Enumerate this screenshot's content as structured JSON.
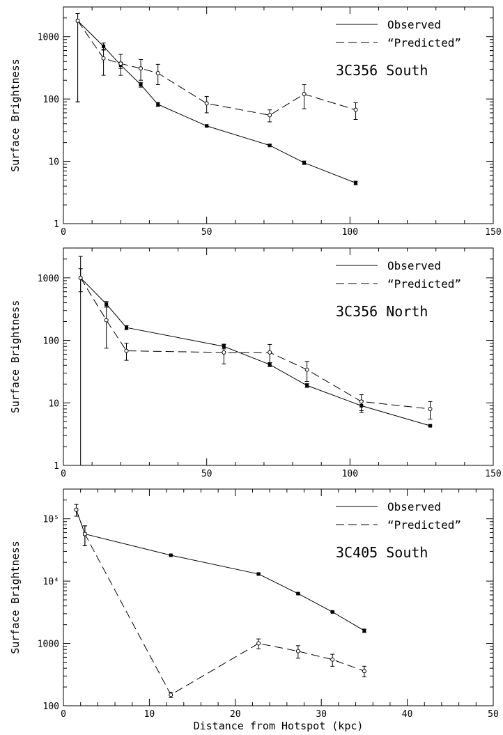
{
  "chart_data": [
    {
      "type": "line",
      "panel_label": "3C356 South",
      "ylabel": "Surface Brightness",
      "xlabel": "",
      "xlim": [
        0,
        150
      ],
      "ylim": [
        1,
        3000
      ],
      "y_scale": "log",
      "x_ticks": [
        "0",
        "50",
        "100",
        "150"
      ],
      "y_ticks": [
        "1",
        "10",
        "100",
        "1000"
      ],
      "legend_position": "top-right",
      "series": [
        {
          "name": "Observed",
          "style": "solid",
          "x": [
            5,
            14,
            20,
            27,
            33,
            50,
            72,
            84,
            102
          ],
          "y": [
            1800,
            700,
            350,
            170,
            82,
            37,
            18,
            9.5,
            4.5
          ],
          "err_lo": [
            1710,
            90,
            40,
            15,
            6,
            1.5,
            0.7,
            0.6,
            0.3
          ],
          "err_hi": [
            550,
            90,
            40,
            15,
            6,
            1.5,
            0.7,
            0.6,
            0.3
          ]
        },
        {
          "name": "“Predicted”",
          "style": "dashed",
          "x": [
            5,
            14,
            20,
            27,
            33,
            50,
            72,
            84,
            102
          ],
          "y": [
            1800,
            450,
            370,
            310,
            260,
            85,
            55,
            120,
            67
          ],
          "err_lo": [
            1710,
            210,
            130,
            110,
            90,
            25,
            12,
            50,
            20
          ],
          "err_hi": [
            550,
            180,
            150,
            120,
            100,
            25,
            12,
            50,
            20
          ]
        }
      ]
    },
    {
      "type": "line",
      "panel_label": "3C356 North",
      "ylabel": "Surface Brightness",
      "xlabel": "",
      "xlim": [
        0,
        150
      ],
      "ylim": [
        1,
        3000
      ],
      "y_scale": "log",
      "x_ticks": [
        "0",
        "50",
        "100",
        "150"
      ],
      "y_ticks": [
        "1",
        "10",
        "100",
        "1000"
      ],
      "legend_position": "top-right",
      "series": [
        {
          "name": "Observed",
          "style": "solid",
          "x": [
            6,
            15,
            22,
            56,
            72,
            85,
            104,
            128
          ],
          "y": [
            1000,
            380,
            160,
            80,
            41,
            19,
            9,
            4.3
          ],
          "err_lo": [
            999,
            40,
            12,
            7,
            3,
            1.3,
            2,
            0.15
          ],
          "err_hi": [
            1200,
            40,
            12,
            7,
            3,
            1.3,
            2,
            0.15
          ]
        },
        {
          "name": "“Predicted”",
          "style": "dashed",
          "x": [
            6,
            15,
            22,
            56,
            72,
            85,
            104,
            128
          ],
          "y": [
            1000,
            210,
            68,
            64,
            64,
            34,
            10.5,
            8
          ],
          "err_lo": [
            400,
            135,
            20,
            22,
            22,
            12,
            3,
            2.5
          ],
          "err_hi": [
            400,
            135,
            22,
            22,
            22,
            12,
            3,
            2.5
          ]
        }
      ]
    },
    {
      "type": "line",
      "panel_label": "3C405 South",
      "ylabel": "Surface Brightness",
      "xlabel": "Distance from Hotspot (kpc)",
      "xlim": [
        0,
        50
      ],
      "ylim": [
        100,
        300000
      ],
      "y_scale": "log",
      "x_ticks": [
        "0",
        "10",
        "20",
        "30",
        "40",
        "50"
      ],
      "y_ticks": [
        "100",
        "1000",
        "10⁴",
        "10⁵"
      ],
      "legend_position": "top-right",
      "series": [
        {
          "name": "Observed",
          "style": "solid",
          "x": [
            1.5,
            2.5,
            12.5,
            22.7,
            27.3,
            31.3,
            35
          ],
          "y": [
            140000,
            57000,
            26000,
            13000,
            6300,
            3200,
            1600
          ],
          "err_lo": [
            30000,
            20000,
            600,
            300,
            150,
            80,
            100
          ],
          "err_hi": [
            30000,
            20000,
            600,
            300,
            150,
            80,
            100
          ]
        },
        {
          "name": "“Predicted”",
          "style": "dashed",
          "x": [
            1.5,
            2.5,
            12.5,
            22.7,
            27.3,
            31.3,
            35
          ],
          "y": [
            140000,
            57000,
            150,
            1000,
            750,
            550,
            360
          ],
          "err_lo": [
            30000,
            20000,
            15,
            180,
            170,
            120,
            70
          ],
          "err_hi": [
            30000,
            20000,
            15,
            180,
            170,
            120,
            70
          ]
        }
      ]
    }
  ]
}
